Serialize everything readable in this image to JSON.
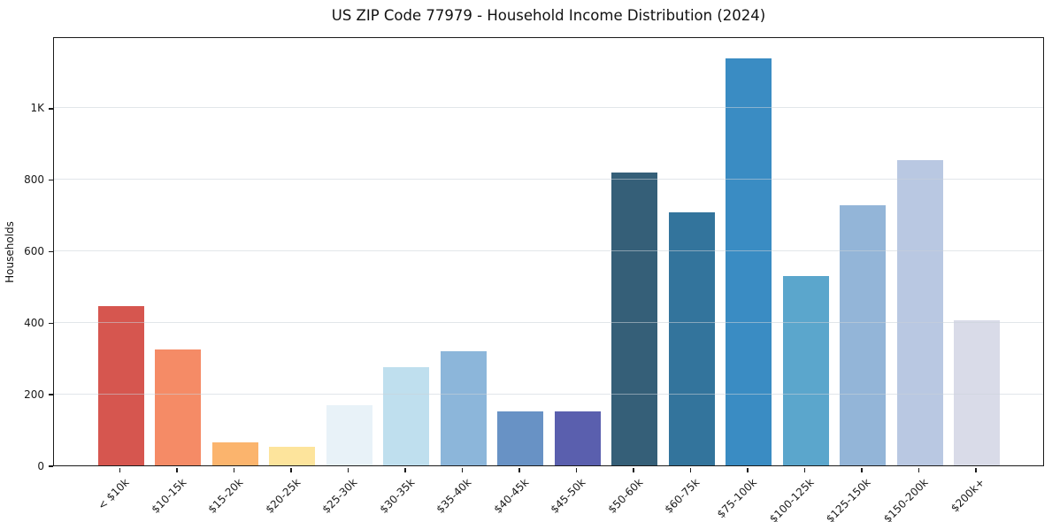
{
  "title": "US ZIP Code 77979 - Household Income Distribution (2024)",
  "chart_data": {
    "type": "bar",
    "title": "US ZIP Code 77979 - Household Income Distribution (2024)",
    "xlabel": "",
    "ylabel": "Households",
    "ylim": [
      0,
      1200
    ],
    "grid": "horizontal-only",
    "legend": "none",
    "categories": [
      "< $10k",
      "$10-15k",
      "$15-20k",
      "$20-25k",
      "$25-30k",
      "$30-35k",
      "$35-40k",
      "$40-45k",
      "$45-50k",
      "$50-60k",
      "$60-75k",
      "$75-100k",
      "$100-125k",
      "$125-150k",
      "$150-200k",
      "$200k+"
    ],
    "values": [
      445,
      325,
      64,
      52,
      168,
      275,
      318,
      151,
      151,
      820,
      707,
      1138,
      529,
      727,
      854,
      406
    ],
    "bar_colors": [
      "#d6564f",
      "#f58b66",
      "#fbb46d",
      "#fde49c",
      "#e8f2f8",
      "#bfdfee",
      "#8cb6da",
      "#6892c5",
      "#5a5fae",
      "#355f78",
      "#33749c",
      "#3a8cc3",
      "#5ba6cc",
      "#93b5d8",
      "#b9c8e2",
      "#d9dbe8"
    ],
    "y_ticks": [
      {
        "value": 0,
        "label": "0"
      },
      {
        "value": 200,
        "label": "200"
      },
      {
        "value": 400,
        "label": "400"
      },
      {
        "value": 600,
        "label": "600"
      },
      {
        "value": 800,
        "label": "800"
      },
      {
        "value": 1000,
        "label": "1K"
      }
    ]
  }
}
